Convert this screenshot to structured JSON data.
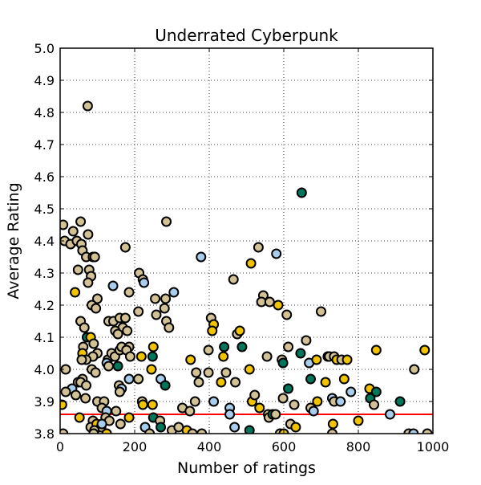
{
  "chart_data": {
    "type": "scatter",
    "title": "Underrated Cyberpunk",
    "xlabel": "Number of ratings",
    "ylabel": "Average Rating",
    "xlim": [
      0,
      1000
    ],
    "ylim": [
      3.8,
      5.0
    ],
    "x_ticks": [
      "0",
      "200",
      "400",
      "600",
      "800",
      "1000"
    ],
    "y_ticks": [
      "3.8",
      "3.9",
      "4.0",
      "4.1",
      "4.2",
      "4.3",
      "4.4",
      "4.5",
      "4.6",
      "4.7",
      "4.8",
      "4.9",
      "5.0"
    ],
    "grid": true,
    "reference_line": {
      "y": 3.86,
      "color": "#ff0000"
    },
    "colors": {
      "tan": "#d2c195",
      "yellow": "#f2c300",
      "green": "#00765a",
      "lightblue": "#a9cdec"
    },
    "points": [
      {
        "x": 74,
        "y": 4.82,
        "c": "tan"
      },
      {
        "x": 8,
        "y": 4.45,
        "c": "tan"
      },
      {
        "x": 55,
        "y": 4.46,
        "c": "tan"
      },
      {
        "x": 35,
        "y": 4.43,
        "c": "tan"
      },
      {
        "x": 75,
        "y": 4.42,
        "c": "tan"
      },
      {
        "x": 12,
        "y": 4.4,
        "c": "tan"
      },
      {
        "x": 28,
        "y": 4.39,
        "c": "tan"
      },
      {
        "x": 45,
        "y": 4.4,
        "c": "tan"
      },
      {
        "x": 57,
        "y": 4.39,
        "c": "tan"
      },
      {
        "x": 60,
        "y": 4.37,
        "c": "tan"
      },
      {
        "x": 70,
        "y": 4.35,
        "c": "tan"
      },
      {
        "x": 88,
        "y": 4.35,
        "c": "tan"
      },
      {
        "x": 93,
        "y": 4.35,
        "c": "tan"
      },
      {
        "x": 48,
        "y": 4.31,
        "c": "tan"
      },
      {
        "x": 78,
        "y": 4.31,
        "c": "tan"
      },
      {
        "x": 83,
        "y": 4.29,
        "c": "tan"
      },
      {
        "x": 75,
        "y": 4.27,
        "c": "tan"
      },
      {
        "x": 40,
        "y": 4.24,
        "c": "yellow"
      },
      {
        "x": 100,
        "y": 4.22,
        "c": "tan"
      },
      {
        "x": 85,
        "y": 4.2,
        "c": "tan"
      },
      {
        "x": 96,
        "y": 4.19,
        "c": "tan"
      },
      {
        "x": 55,
        "y": 4.15,
        "c": "tan"
      },
      {
        "x": 65,
        "y": 4.13,
        "c": "tan"
      },
      {
        "x": 72,
        "y": 4.1,
        "c": "green"
      },
      {
        "x": 82,
        "y": 4.1,
        "c": "yellow"
      },
      {
        "x": 90,
        "y": 4.08,
        "c": "tan"
      },
      {
        "x": 62,
        "y": 4.07,
        "c": "tan"
      },
      {
        "x": 60,
        "y": 4.05,
        "c": "yellow"
      },
      {
        "x": 100,
        "y": 4.05,
        "c": "tan"
      },
      {
        "x": 88,
        "y": 4.04,
        "c": "tan"
      },
      {
        "x": 70,
        "y": 4.03,
        "c": "tan"
      },
      {
        "x": 58,
        "y": 4.03,
        "c": "tan"
      },
      {
        "x": 15,
        "y": 4.0,
        "c": "tan"
      },
      {
        "x": 85,
        "y": 4.0,
        "c": "tan"
      },
      {
        "x": 95,
        "y": 3.99,
        "c": "tan"
      },
      {
        "x": 60,
        "y": 3.97,
        "c": "tan"
      },
      {
        "x": 48,
        "y": 3.96,
        "c": "tan"
      },
      {
        "x": 55,
        "y": 3.96,
        "c": "tan"
      },
      {
        "x": 70,
        "y": 3.95,
        "c": "tan"
      },
      {
        "x": 32,
        "y": 3.94,
        "c": "lightblue"
      },
      {
        "x": 15,
        "y": 3.93,
        "c": "tan"
      },
      {
        "x": 42,
        "y": 3.92,
        "c": "tan"
      },
      {
        "x": 68,
        "y": 3.91,
        "c": "tan"
      },
      {
        "x": 100,
        "y": 3.9,
        "c": "tan"
      },
      {
        "x": 5,
        "y": 3.89,
        "c": "yellow"
      },
      {
        "x": 118,
        "y": 3.9,
        "c": "tan"
      },
      {
        "x": 112,
        "y": 3.88,
        "c": "tan"
      },
      {
        "x": 52,
        "y": 3.85,
        "c": "yellow"
      },
      {
        "x": 88,
        "y": 3.84,
        "c": "tan"
      },
      {
        "x": 82,
        "y": 3.82,
        "c": "tan"
      },
      {
        "x": 98,
        "y": 3.83,
        "c": "yellow"
      },
      {
        "x": 110,
        "y": 3.82,
        "c": "tan"
      },
      {
        "x": 92,
        "y": 3.81,
        "c": "tan"
      },
      {
        "x": 8,
        "y": 3.8,
        "c": "tan"
      },
      {
        "x": 90,
        "y": 3.8,
        "c": "tan"
      },
      {
        "x": 128,
        "y": 4.03,
        "c": "tan"
      },
      {
        "x": 125,
        "y": 4.02,
        "c": "lightblue"
      },
      {
        "x": 130,
        "y": 4.01,
        "c": "tan"
      },
      {
        "x": 138,
        "y": 4.05,
        "c": "tan"
      },
      {
        "x": 147,
        "y": 4.04,
        "c": "tan"
      },
      {
        "x": 155,
        "y": 4.01,
        "c": "green"
      },
      {
        "x": 160,
        "y": 4.06,
        "c": "tan"
      },
      {
        "x": 142,
        "y": 4.26,
        "c": "lightblue"
      },
      {
        "x": 130,
        "y": 4.15,
        "c": "tan"
      },
      {
        "x": 143,
        "y": 4.15,
        "c": "tan"
      },
      {
        "x": 160,
        "y": 4.16,
        "c": "tan"
      },
      {
        "x": 175,
        "y": 4.16,
        "c": "tan"
      },
      {
        "x": 168,
        "y": 4.13,
        "c": "tan"
      },
      {
        "x": 148,
        "y": 4.12,
        "c": "tan"
      },
      {
        "x": 155,
        "y": 4.11,
        "c": "tan"
      },
      {
        "x": 180,
        "y": 4.12,
        "c": "tan"
      },
      {
        "x": 165,
        "y": 4.07,
        "c": "tan"
      },
      {
        "x": 185,
        "y": 4.07,
        "c": "tan"
      },
      {
        "x": 178,
        "y": 4.06,
        "c": "tan"
      },
      {
        "x": 188,
        "y": 4.04,
        "c": "tan"
      },
      {
        "x": 175,
        "y": 4.38,
        "c": "tan"
      },
      {
        "x": 185,
        "y": 4.24,
        "c": "tan"
      },
      {
        "x": 212,
        "y": 4.3,
        "c": "tan"
      },
      {
        "x": 222,
        "y": 4.28,
        "c": "tan"
      },
      {
        "x": 225,
        "y": 4.27,
        "c": "lightblue"
      },
      {
        "x": 210,
        "y": 4.18,
        "c": "tan"
      },
      {
        "x": 218,
        "y": 4.04,
        "c": "yellow"
      },
      {
        "x": 158,
        "y": 3.95,
        "c": "tan"
      },
      {
        "x": 165,
        "y": 3.94,
        "c": "lightblue"
      },
      {
        "x": 160,
        "y": 3.93,
        "c": "tan"
      },
      {
        "x": 185,
        "y": 3.97,
        "c": "lightblue"
      },
      {
        "x": 210,
        "y": 3.97,
        "c": "tan"
      },
      {
        "x": 150,
        "y": 3.87,
        "c": "tan"
      },
      {
        "x": 125,
        "y": 3.87,
        "c": "lightblue"
      },
      {
        "x": 122,
        "y": 3.85,
        "c": "tan"
      },
      {
        "x": 132,
        "y": 3.84,
        "c": "tan"
      },
      {
        "x": 185,
        "y": 3.85,
        "c": "yellow"
      },
      {
        "x": 162,
        "y": 3.83,
        "c": "tan"
      },
      {
        "x": 112,
        "y": 3.83,
        "c": "lightblue"
      },
      {
        "x": 220,
        "y": 3.9,
        "c": "tan"
      },
      {
        "x": 222,
        "y": 3.89,
        "c": "yellow"
      },
      {
        "x": 228,
        "y": 3.82,
        "c": "lightblue"
      },
      {
        "x": 125,
        "y": 3.8,
        "c": "yellow"
      },
      {
        "x": 240,
        "y": 3.8,
        "c": "tan"
      },
      {
        "x": 285,
        "y": 4.46,
        "c": "tan"
      },
      {
        "x": 255,
        "y": 4.22,
        "c": "tan"
      },
      {
        "x": 283,
        "y": 4.22,
        "c": "tan"
      },
      {
        "x": 280,
        "y": 4.19,
        "c": "tan"
      },
      {
        "x": 258,
        "y": 4.17,
        "c": "tan"
      },
      {
        "x": 285,
        "y": 4.15,
        "c": "tan"
      },
      {
        "x": 292,
        "y": 4.13,
        "c": "tan"
      },
      {
        "x": 305,
        "y": 4.24,
        "c": "lightblue"
      },
      {
        "x": 250,
        "y": 4.07,
        "c": "yellow"
      },
      {
        "x": 248,
        "y": 4.04,
        "c": "green"
      },
      {
        "x": 245,
        "y": 4.0,
        "c": "yellow"
      },
      {
        "x": 270,
        "y": 3.97,
        "c": "lightblue"
      },
      {
        "x": 282,
        "y": 3.95,
        "c": "green"
      },
      {
        "x": 248,
        "y": 3.89,
        "c": "yellow"
      },
      {
        "x": 250,
        "y": 3.85,
        "c": "green"
      },
      {
        "x": 268,
        "y": 3.84,
        "c": "tan"
      },
      {
        "x": 270,
        "y": 3.82,
        "c": "green"
      },
      {
        "x": 300,
        "y": 3.81,
        "c": "tan"
      },
      {
        "x": 318,
        "y": 3.82,
        "c": "tan"
      },
      {
        "x": 328,
        "y": 3.88,
        "c": "tan"
      },
      {
        "x": 348,
        "y": 3.87,
        "c": "tan"
      },
      {
        "x": 350,
        "y": 4.03,
        "c": "yellow"
      },
      {
        "x": 362,
        "y": 3.9,
        "c": "tan"
      },
      {
        "x": 365,
        "y": 3.99,
        "c": "tan"
      },
      {
        "x": 372,
        "y": 3.96,
        "c": "tan"
      },
      {
        "x": 340,
        "y": 3.81,
        "c": "yellow"
      },
      {
        "x": 355,
        "y": 3.8,
        "c": "tan"
      },
      {
        "x": 378,
        "y": 4.35,
        "c": "lightblue"
      },
      {
        "x": 398,
        "y": 4.06,
        "c": "tan"
      },
      {
        "x": 398,
        "y": 3.99,
        "c": "tan"
      },
      {
        "x": 380,
        "y": 3.8,
        "c": "tan"
      },
      {
        "x": 405,
        "y": 4.16,
        "c": "tan"
      },
      {
        "x": 412,
        "y": 4.14,
        "c": "yellow"
      },
      {
        "x": 408,
        "y": 4.12,
        "c": "yellow"
      },
      {
        "x": 440,
        "y": 4.07,
        "c": "green"
      },
      {
        "x": 438,
        "y": 4.04,
        "c": "yellow"
      },
      {
        "x": 445,
        "y": 3.99,
        "c": "tan"
      },
      {
        "x": 432,
        "y": 3.96,
        "c": "yellow"
      },
      {
        "x": 412,
        "y": 3.9,
        "c": "lightblue"
      },
      {
        "x": 455,
        "y": 3.88,
        "c": "lightblue"
      },
      {
        "x": 455,
        "y": 3.86,
        "c": "lightblue"
      },
      {
        "x": 468,
        "y": 3.82,
        "c": "lightblue"
      },
      {
        "x": 465,
        "y": 4.28,
        "c": "tan"
      },
      {
        "x": 475,
        "y": 4.11,
        "c": "tan"
      },
      {
        "x": 482,
        "y": 4.12,
        "c": "yellow"
      },
      {
        "x": 488,
        "y": 4.07,
        "c": "green"
      },
      {
        "x": 470,
        "y": 3.96,
        "c": "tan"
      },
      {
        "x": 508,
        "y": 4.0,
        "c": "yellow"
      },
      {
        "x": 515,
        "y": 3.9,
        "c": "yellow"
      },
      {
        "x": 522,
        "y": 3.92,
        "c": "tan"
      },
      {
        "x": 508,
        "y": 3.81,
        "c": "green"
      },
      {
        "x": 512,
        "y": 4.33,
        "c": "yellow"
      },
      {
        "x": 532,
        "y": 4.38,
        "c": "tan"
      },
      {
        "x": 545,
        "y": 4.23,
        "c": "tan"
      },
      {
        "x": 540,
        "y": 4.21,
        "c": "tan"
      },
      {
        "x": 562,
        "y": 4.21,
        "c": "tan"
      },
      {
        "x": 580,
        "y": 4.36,
        "c": "lightblue"
      },
      {
        "x": 585,
        "y": 4.2,
        "c": "yellow"
      },
      {
        "x": 555,
        "y": 4.04,
        "c": "tan"
      },
      {
        "x": 535,
        "y": 3.88,
        "c": "yellow"
      },
      {
        "x": 558,
        "y": 3.86,
        "c": "tan"
      },
      {
        "x": 560,
        "y": 3.85,
        "c": "tan"
      },
      {
        "x": 570,
        "y": 3.86,
        "c": "green"
      },
      {
        "x": 578,
        "y": 3.86,
        "c": "tan"
      },
      {
        "x": 595,
        "y": 4.03,
        "c": "tan"
      },
      {
        "x": 598,
        "y": 4.02,
        "c": "green"
      },
      {
        "x": 598,
        "y": 3.91,
        "c": "tan"
      },
      {
        "x": 590,
        "y": 3.8,
        "c": "tan"
      },
      {
        "x": 600,
        "y": 3.8,
        "c": "yellow"
      },
      {
        "x": 608,
        "y": 4.17,
        "c": "tan"
      },
      {
        "x": 612,
        "y": 4.07,
        "c": "tan"
      },
      {
        "x": 612,
        "y": 3.94,
        "c": "green"
      },
      {
        "x": 618,
        "y": 3.83,
        "c": "tan"
      },
      {
        "x": 628,
        "y": 3.89,
        "c": "tan"
      },
      {
        "x": 632,
        "y": 3.82,
        "c": "yellow"
      },
      {
        "x": 648,
        "y": 4.55,
        "c": "green"
      },
      {
        "x": 645,
        "y": 4.05,
        "c": "green"
      },
      {
        "x": 660,
        "y": 4.09,
        "c": "tan"
      },
      {
        "x": 668,
        "y": 4.02,
        "c": "lightblue"
      },
      {
        "x": 672,
        "y": 3.97,
        "c": "green"
      },
      {
        "x": 672,
        "y": 3.88,
        "c": "tan"
      },
      {
        "x": 680,
        "y": 3.87,
        "c": "lightblue"
      },
      {
        "x": 688,
        "y": 4.03,
        "c": "yellow"
      },
      {
        "x": 690,
        "y": 3.9,
        "c": "yellow"
      },
      {
        "x": 700,
        "y": 4.18,
        "c": "tan"
      },
      {
        "x": 712,
        "y": 3.96,
        "c": "yellow"
      },
      {
        "x": 718,
        "y": 4.04,
        "c": "tan"
      },
      {
        "x": 722,
        "y": 4.04,
        "c": "tan"
      },
      {
        "x": 730,
        "y": 3.91,
        "c": "lightblue"
      },
      {
        "x": 735,
        "y": 4.04,
        "c": "tan"
      },
      {
        "x": 742,
        "y": 4.03,
        "c": "yellow"
      },
      {
        "x": 735,
        "y": 3.9,
        "c": "tan"
      },
      {
        "x": 732,
        "y": 3.83,
        "c": "yellow"
      },
      {
        "x": 730,
        "y": 3.8,
        "c": "tan"
      },
      {
        "x": 752,
        "y": 3.9,
        "c": "lightblue"
      },
      {
        "x": 755,
        "y": 4.03,
        "c": "tan"
      },
      {
        "x": 762,
        "y": 3.97,
        "c": "yellow"
      },
      {
        "x": 770,
        "y": 4.03,
        "c": "yellow"
      },
      {
        "x": 780,
        "y": 3.93,
        "c": "lightblue"
      },
      {
        "x": 800,
        "y": 3.84,
        "c": "yellow"
      },
      {
        "x": 830,
        "y": 3.94,
        "c": "yellow"
      },
      {
        "x": 832,
        "y": 3.91,
        "c": "green"
      },
      {
        "x": 842,
        "y": 3.89,
        "c": "tan"
      },
      {
        "x": 848,
        "y": 3.93,
        "c": "green"
      },
      {
        "x": 848,
        "y": 4.06,
        "c": "yellow"
      },
      {
        "x": 885,
        "y": 3.86,
        "c": "lightblue"
      },
      {
        "x": 912,
        "y": 3.9,
        "c": "green"
      },
      {
        "x": 935,
        "y": 3.8,
        "c": "tan"
      },
      {
        "x": 950,
        "y": 4.0,
        "c": "tan"
      },
      {
        "x": 948,
        "y": 3.8,
        "c": "lightblue"
      },
      {
        "x": 978,
        "y": 4.06,
        "c": "yellow"
      },
      {
        "x": 985,
        "y": 3.8,
        "c": "tan"
      }
    ]
  }
}
